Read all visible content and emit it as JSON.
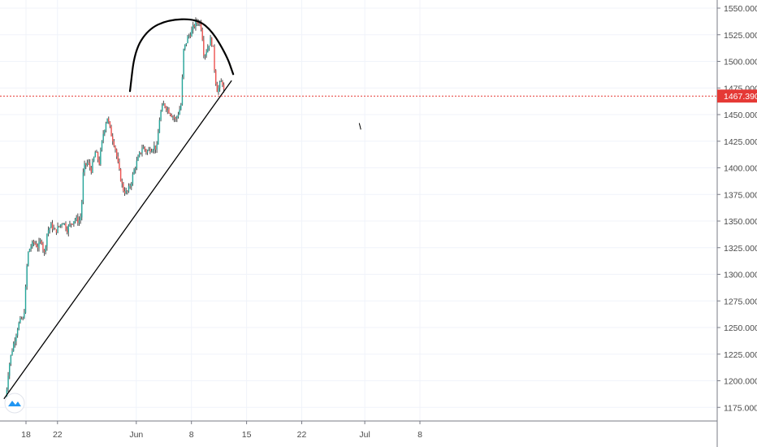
{
  "colors": {
    "background": "#ffffff",
    "grid": "#f0f3fa",
    "axis_text": "#4a4a4a",
    "candle_up": "#26a69a",
    "candle_down": "#ef5350",
    "wick": "#4a4a4a",
    "price_line": "#e53935",
    "drawing": "#000000",
    "logo_bg": "#ffffff",
    "logo_fg": "#2196f3"
  },
  "logo_icon": "tradingview-logo-icon",
  "chart_data": {
    "type": "candlestick",
    "title": "",
    "xlabel": "",
    "ylabel": "",
    "ylim": [
      1165,
      1555
    ],
    "y_ticks": [
      "1175.000",
      "1200.000",
      "1225.000",
      "1250.000",
      "1275.000",
      "1300.000",
      "1325.000",
      "1350.000",
      "1375.000",
      "1400.000",
      "1425.000",
      "1450.000",
      "1475.000",
      "1500.000",
      "1525.000",
      "1550.000"
    ],
    "x_ticks": [
      {
        "label": "18",
        "day": 0
      },
      {
        "label": "22",
        "day": 4
      },
      {
        "label": "Jun",
        "day": 14
      },
      {
        "label": "8",
        "day": 21
      },
      {
        "label": "15",
        "day": 28
      },
      {
        "label": "22",
        "day": 35
      },
      {
        "label": "Jul",
        "day": 43
      },
      {
        "label": "8",
        "day": 50
      }
    ],
    "current_price": {
      "value": 1467.39,
      "label": "1467.390"
    },
    "price_path": [
      {
        "d": -2.6,
        "p": 1180
      },
      {
        "d": -2.2,
        "p": 1212
      },
      {
        "d": -1.8,
        "p": 1228
      },
      {
        "d": -1.4,
        "p": 1240
      },
      {
        "d": -1.0,
        "p": 1252
      },
      {
        "d": -0.6,
        "p": 1258
      },
      {
        "d": -0.3,
        "p": 1257
      },
      {
        "d": 0.0,
        "p": 1292
      },
      {
        "d": 0.2,
        "p": 1318
      },
      {
        "d": 0.5,
        "p": 1325
      },
      {
        "d": 1.0,
        "p": 1330
      },
      {
        "d": 1.5,
        "p": 1326
      },
      {
        "d": 2.0,
        "p": 1332
      },
      {
        "d": 2.3,
        "p": 1318
      },
      {
        "d": 2.7,
        "p": 1340
      },
      {
        "d": 3.2,
        "p": 1346
      },
      {
        "d": 3.7,
        "p": 1340
      },
      {
        "d": 4.2,
        "p": 1345
      },
      {
        "d": 4.7,
        "p": 1350
      },
      {
        "d": 5.2,
        "p": 1342
      },
      {
        "d": 5.7,
        "p": 1348
      },
      {
        "d": 6.2,
        "p": 1352
      },
      {
        "d": 6.7,
        "p": 1350
      },
      {
        "d": 7.0,
        "p": 1355
      },
      {
        "d": 7.3,
        "p": 1400
      },
      {
        "d": 7.8,
        "p": 1405
      },
      {
        "d": 8.3,
        "p": 1398
      },
      {
        "d": 8.8,
        "p": 1415
      },
      {
        "d": 9.3,
        "p": 1405
      },
      {
        "d": 9.8,
        "p": 1432
      },
      {
        "d": 10.3,
        "p": 1448
      },
      {
        "d": 10.8,
        "p": 1432
      },
      {
        "d": 11.3,
        "p": 1420
      },
      {
        "d": 11.8,
        "p": 1398
      },
      {
        "d": 12.3,
        "p": 1380
      },
      {
        "d": 12.8,
        "p": 1376
      },
      {
        "d": 13.3,
        "p": 1385
      },
      {
        "d": 13.8,
        "p": 1400
      },
      {
        "d": 14.3,
        "p": 1410
      },
      {
        "d": 14.8,
        "p": 1420
      },
      {
        "d": 15.3,
        "p": 1415
      },
      {
        "d": 15.8,
        "p": 1418
      },
      {
        "d": 16.3,
        "p": 1420
      },
      {
        "d": 16.6,
        "p": 1418
      },
      {
        "d": 17.0,
        "p": 1450
      },
      {
        "d": 17.5,
        "p": 1460
      },
      {
        "d": 18.0,
        "p": 1455
      },
      {
        "d": 18.5,
        "p": 1450
      },
      {
        "d": 19.0,
        "p": 1445
      },
      {
        "d": 19.5,
        "p": 1455
      },
      {
        "d": 19.7,
        "p": 1460
      },
      {
        "d": 20.0,
        "p": 1510
      },
      {
        "d": 20.5,
        "p": 1522
      },
      {
        "d": 21.0,
        "p": 1528
      },
      {
        "d": 21.5,
        "p": 1536
      },
      {
        "d": 22.0,
        "p": 1538
      },
      {
        "d": 22.3,
        "p": 1530
      },
      {
        "d": 22.6,
        "p": 1505
      },
      {
        "d": 23.0,
        "p": 1512
      },
      {
        "d": 23.4,
        "p": 1520
      },
      {
        "d": 23.7,
        "p": 1516
      },
      {
        "d": 24.0,
        "p": 1485
      },
      {
        "d": 24.3,
        "p": 1472
      },
      {
        "d": 24.6,
        "p": 1478
      },
      {
        "d": 24.9,
        "p": 1482
      },
      {
        "d": 25.2,
        "p": 1468
      }
    ],
    "annotations": {
      "trendline": {
        "from": {
          "d": -2.8,
          "p": 1183
        },
        "to": {
          "d": 26.1,
          "p": 1482
        }
      },
      "arc": [
        {
          "d": 13.2,
          "p": 1472
        },
        {
          "d": 13.8,
          "p": 1510
        },
        {
          "d": 15.5,
          "p": 1530
        },
        {
          "d": 18.0,
          "p": 1539
        },
        {
          "d": 21.5,
          "p": 1540
        },
        {
          "d": 23.5,
          "p": 1530
        },
        {
          "d": 25.5,
          "p": 1505
        },
        {
          "d": 26.3,
          "p": 1488
        }
      ],
      "tick_mark": {
        "from": {
          "d": 42.3,
          "p": 1442
        },
        "to": {
          "d": 42.5,
          "p": 1436
        }
      }
    }
  }
}
